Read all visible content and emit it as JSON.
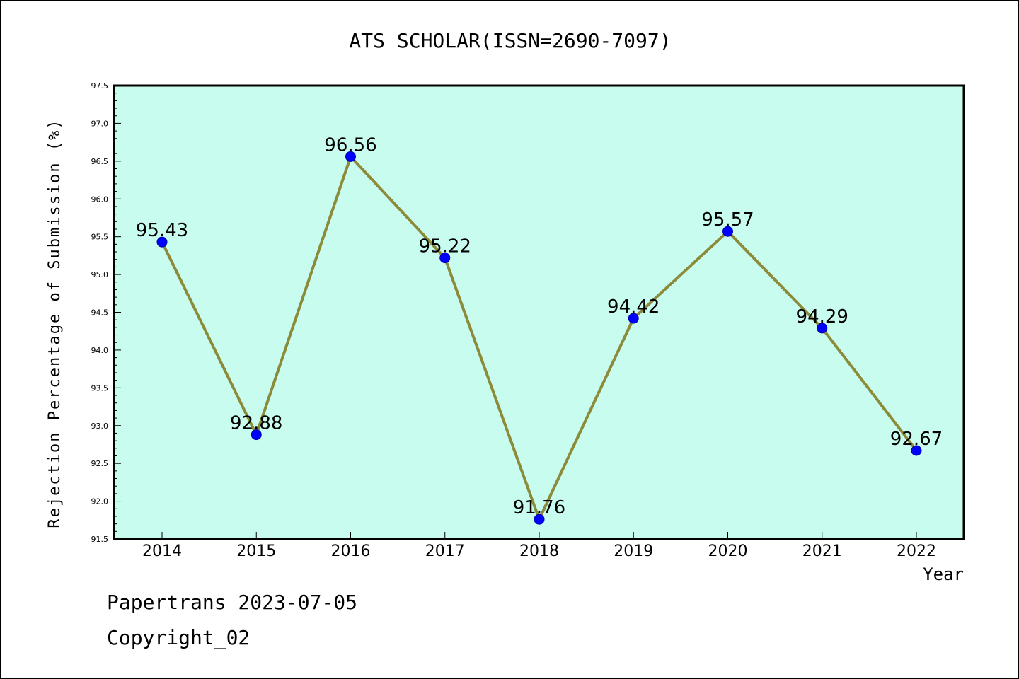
{
  "chart_data": {
    "type": "line",
    "title": "ATS SCHOLAR(ISSN=2690-7097)",
    "xlabel": "Year",
    "ylabel": "Rejection Percentage of Submission (%)",
    "categories": [
      "2014",
      "2015",
      "2016",
      "2017",
      "2018",
      "2019",
      "2020",
      "2021",
      "2022"
    ],
    "values": [
      95.43,
      92.88,
      96.56,
      95.22,
      91.76,
      94.42,
      95.57,
      94.29,
      92.67
    ],
    "data_labels": [
      "95.43",
      "92.88",
      "96.56",
      "95.22",
      "91.76",
      "94.42",
      "95.57",
      "94.29",
      "92.67"
    ],
    "ylim": [
      91.5,
      97.5
    ],
    "yticks": [
      "91.5",
      "92.0",
      "92.5",
      "93.0",
      "93.5",
      "94.0",
      "94.5",
      "95.0",
      "95.5",
      "96.0",
      "96.5",
      "97.0",
      "97.5"
    ],
    "grid": false,
    "colors": {
      "plot_background": "#c8fcee",
      "line": "#8b8b3a",
      "marker": "#0000ff"
    }
  },
  "footer": {
    "line1": "Papertrans 2023-07-05",
    "line2": "Copyright_02"
  }
}
